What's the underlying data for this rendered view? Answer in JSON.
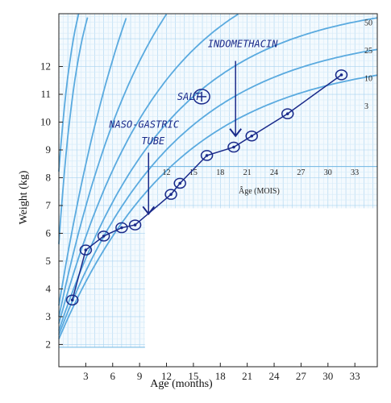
{
  "chart_data": {
    "type": "line",
    "xlabel": "Age (months)",
    "ylabel": "Weight (kg)",
    "xlim": [
      0,
      35.5
    ],
    "ylim": [
      1.2,
      13.9
    ],
    "x_ticks": [
      3,
      6,
      9,
      12,
      15,
      18,
      21,
      24,
      27,
      30,
      33
    ],
    "y_ticks": [
      2,
      3,
      4,
      5,
      6,
      7,
      8,
      9,
      10,
      11,
      12
    ],
    "inset_axis": {
      "label": "Âge (MOIS)",
      "ticks": [
        12,
        15,
        18,
        21,
        24,
        27,
        30,
        33
      ]
    },
    "percentile_labels": [
      "50",
      "25",
      "10",
      "3"
    ],
    "grid": true,
    "series": [
      {
        "x": [
          1.5,
          3.0,
          5.0,
          7.0,
          8.5,
          12.5,
          13.5,
          16.5,
          19.5,
          21.5,
          25.5,
          31.5
        ],
        "y": [
          3.6,
          5.4,
          5.9,
          6.2,
          6.3,
          7.4,
          7.8,
          8.8,
          9.1,
          9.5,
          10.3,
          11.7
        ]
      }
    ],
    "annotations": [
      {
        "text": "SALT",
        "x": 14.5,
        "y": 10.8
      },
      {
        "text": "NASO-GASTRIC",
        "x": 9.5,
        "y": 9.8
      },
      {
        "text": "TUBE",
        "x": 10.5,
        "y": 9.2
      },
      {
        "text": "INDOMETHACIN",
        "x": 20.5,
        "y": 12.7
      }
    ],
    "colors": {
      "curves": "#5aaadf",
      "grid": "#a9d3f0",
      "grid_minor": "#d6ebf8",
      "data": "#1a2a8a"
    }
  }
}
